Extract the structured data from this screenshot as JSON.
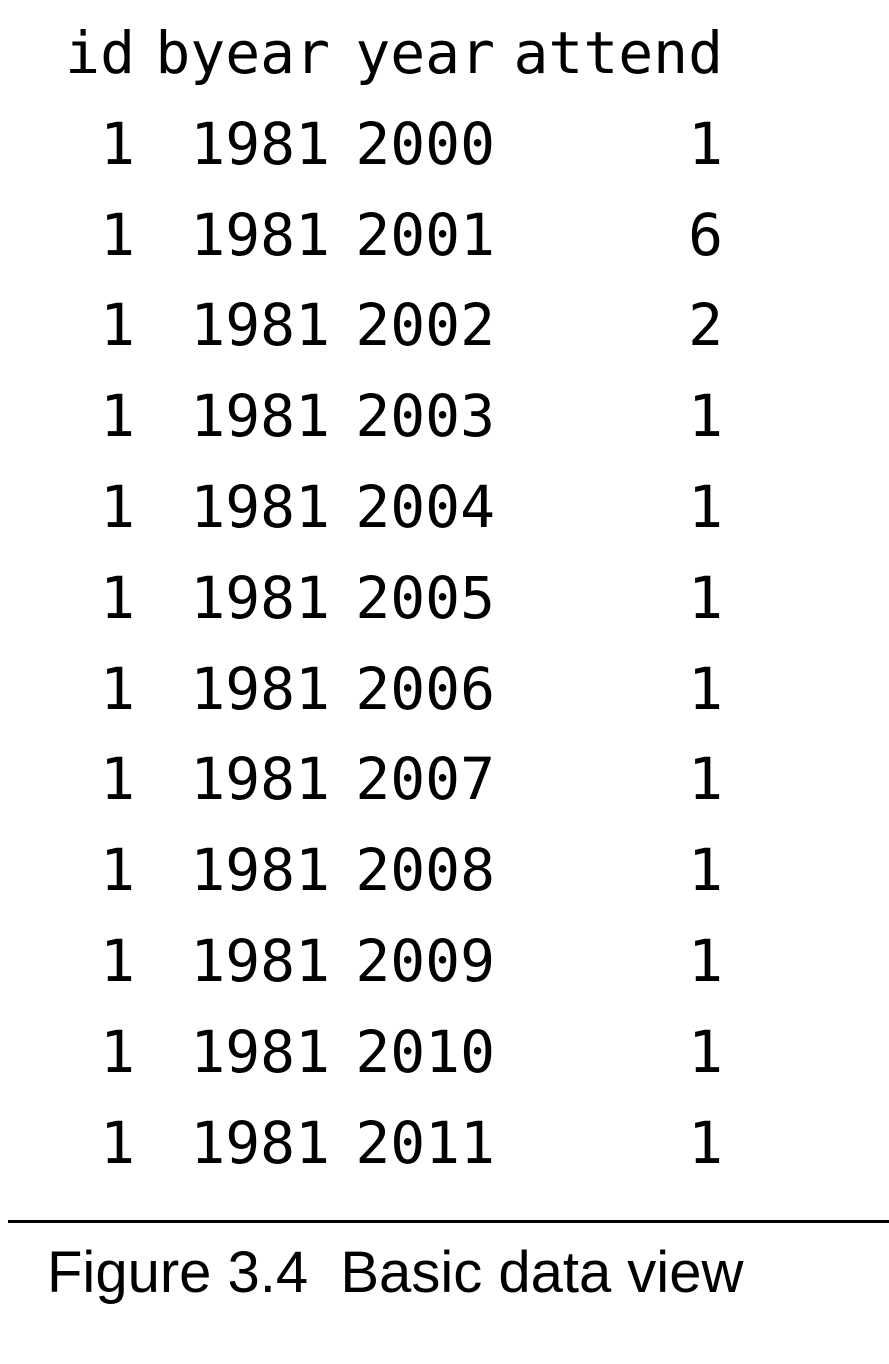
{
  "table": {
    "headers": [
      "id",
      "byear",
      "year",
      "attend"
    ],
    "rows": [
      [
        "1",
        "1981",
        "2000",
        "1"
      ],
      [
        "1",
        "1981",
        "2001",
        "6"
      ],
      [
        "1",
        "1981",
        "2002",
        "2"
      ],
      [
        "1",
        "1981",
        "2003",
        "1"
      ],
      [
        "1",
        "1981",
        "2004",
        "1"
      ],
      [
        "1",
        "1981",
        "2005",
        "1"
      ],
      [
        "1",
        "1981",
        "2006",
        "1"
      ],
      [
        "1",
        "1981",
        "2007",
        "1"
      ],
      [
        "1",
        "1981",
        "2008",
        "1"
      ],
      [
        "1",
        "1981",
        "2009",
        "1"
      ],
      [
        "1",
        "1981",
        "2010",
        "1"
      ],
      [
        "1",
        "1981",
        "2011",
        "1"
      ]
    ]
  },
  "caption": "Figure 3.4  Basic data view"
}
